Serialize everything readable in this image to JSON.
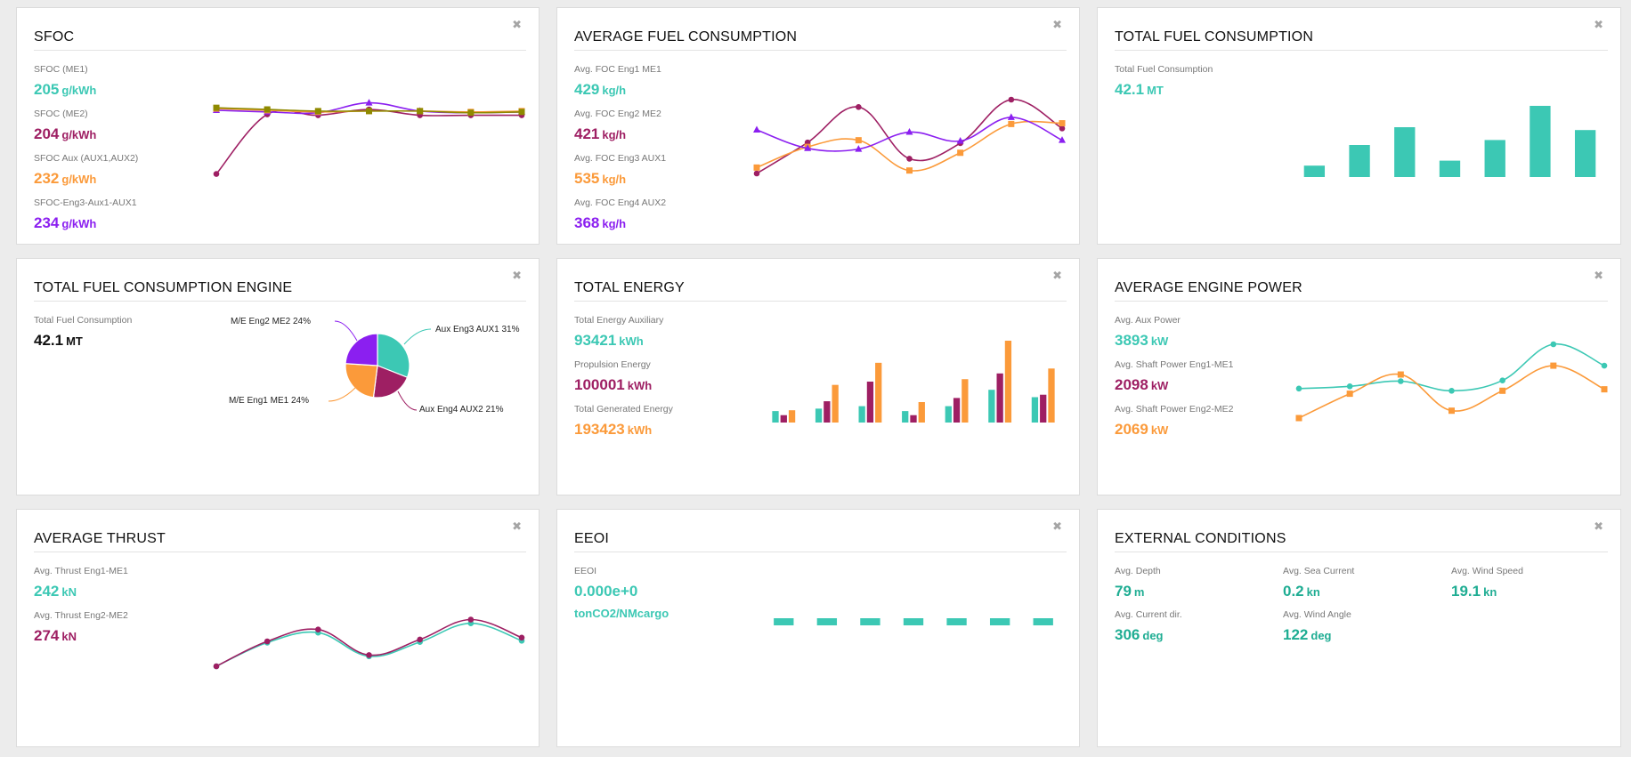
{
  "colors": {
    "teal": "#3cc8b4",
    "maroon": "#9e1f63",
    "orange": "#fb9a3a",
    "purple": "#8b1ff0",
    "olive": "#8f8a00",
    "green": "#1fad93"
  },
  "icons": {
    "close": "close-icon"
  },
  "close_glyph": "✖",
  "sfoc": {
    "title": "SFOC",
    "metrics": [
      {
        "label": "SFOC (ME1)",
        "value": "205",
        "unit": "g/kWh",
        "color": "teal"
      },
      {
        "label": "SFOC (ME2)",
        "value": "204",
        "unit": "g/kWh",
        "color": "maroon"
      },
      {
        "label": "SFOC Aux (AUX1,AUX2)",
        "value": "232",
        "unit": "g/kWh",
        "color": "orange"
      },
      {
        "label": "SFOC-Eng3-Aux1-AUX1",
        "value": "234",
        "unit": "g/kWh",
        "color": "purple"
      }
    ]
  },
  "avg_fuel": {
    "title": "AVERAGE FUEL CONSUMPTION",
    "metrics": [
      {
        "label": "Avg. FOC Eng1 ME1",
        "value": "429",
        "unit": "kg/h",
        "color": "teal"
      },
      {
        "label": "Avg. FOC Eng2 ME2",
        "value": "421",
        "unit": "kg/h",
        "color": "maroon"
      },
      {
        "label": "Avg. FOC Eng3 AUX1",
        "value": "535",
        "unit": "kg/h",
        "color": "orange"
      },
      {
        "label": "Avg. FOC Eng4 AUX2",
        "value": "368",
        "unit": "kg/h",
        "color": "purple"
      }
    ]
  },
  "total_fuel": {
    "title": "TOTAL FUEL CONSUMPTION",
    "metrics": [
      {
        "label": "Total Fuel Consumption",
        "value": "42.1",
        "unit": "MT",
        "color": "teal"
      }
    ]
  },
  "total_fuel_engine": {
    "title": "TOTAL FUEL CONSUMPTION ENGINE",
    "metrics": [
      {
        "label": "Total Fuel Consumption",
        "value": "42.1",
        "unit": "MT",
        "color": "black"
      }
    ]
  },
  "total_energy": {
    "title": "TOTAL ENERGY",
    "metrics": [
      {
        "label": "Total Energy Auxiliary",
        "value": "93421",
        "unit": "kWh",
        "color": "teal"
      },
      {
        "label": "Propulsion Energy",
        "value": "100001",
        "unit": "kWh",
        "color": "maroon"
      },
      {
        "label": "Total Generated Energy",
        "value": "193423",
        "unit": "kWh",
        "color": "orange"
      }
    ]
  },
  "avg_power": {
    "title": "AVERAGE ENGINE POWER",
    "metrics": [
      {
        "label": "Avg. Aux Power",
        "value": "3893",
        "unit": "kW",
        "color": "teal"
      },
      {
        "label": "Avg. Shaft Power Eng1-ME1",
        "value": "2098",
        "unit": "kW",
        "color": "maroon"
      },
      {
        "label": "Avg. Shaft Power Eng2-ME2",
        "value": "2069",
        "unit": "kW",
        "color": "orange"
      }
    ]
  },
  "avg_thrust": {
    "title": "AVERAGE THRUST",
    "metrics": [
      {
        "label": "Avg. Thrust Eng1-ME1",
        "value": "242",
        "unit": "kN",
        "color": "teal"
      },
      {
        "label": "Avg. Thrust Eng2-ME2",
        "value": "274",
        "unit": "kN",
        "color": "maroon"
      }
    ]
  },
  "eeoi": {
    "title": "EEOI",
    "metrics": [
      {
        "label": "EEOI",
        "value": "0.000e+0",
        "unit": "",
        "color": "teal"
      }
    ],
    "unit_line": "tonCO2/NMcargo"
  },
  "external": {
    "title": "EXTERNAL CONDITIONS",
    "items": [
      {
        "label": "Avg. Depth",
        "value": "79",
        "unit": "m"
      },
      {
        "label": "Avg. Sea Current",
        "value": "0.2",
        "unit": "kn"
      },
      {
        "label": "Avg. Wind Speed",
        "value": "19.1",
        "unit": "kn"
      },
      {
        "label": "Avg. Current dir.",
        "value": "306",
        "unit": "deg"
      },
      {
        "label": "Avg. Wind Angle",
        "value": "122",
        "unit": "deg"
      }
    ]
  },
  "chart_data": [
    {
      "id": "sfoc-chart",
      "type": "line",
      "ylim": [
        0,
        100
      ],
      "series": [
        {
          "color": "maroon",
          "marker": "circle",
          "smooth": true,
          "values": [
            8,
            80,
            79,
            86,
            79,
            79,
            79
          ]
        },
        {
          "color": "purple",
          "marker": "triangle",
          "smooth": true,
          "values": [
            85,
            83,
            82,
            94,
            84,
            82,
            83
          ]
        },
        {
          "color": "orange",
          "marker": "square",
          "smooth": true,
          "values": [
            87,
            85,
            83,
            84,
            84,
            83,
            84
          ]
        },
        {
          "color": "olive",
          "marker": "square",
          "smooth": true,
          "values": [
            88,
            86,
            84,
            84,
            84,
            82,
            83
          ]
        }
      ]
    },
    {
      "id": "avg-fuel-chart",
      "type": "line",
      "ylim": [
        0,
        100
      ],
      "series": [
        {
          "color": "maroon",
          "marker": "circle",
          "smooth": true,
          "values": [
            0,
            42,
            90,
            20,
            41,
            100,
            61
          ]
        },
        {
          "color": "orange",
          "marker": "square",
          "smooth": true,
          "values": [
            8,
            36,
            45,
            4,
            28,
            67,
            68
          ]
        },
        {
          "color": "purple",
          "marker": "triangle",
          "smooth": true,
          "values": [
            59,
            34,
            33,
            56,
            44,
            76,
            45
          ]
        }
      ]
    },
    {
      "id": "total-fuel-chart",
      "type": "bar",
      "ylim": [
        0,
        100
      ],
      "series": [
        {
          "color": "teal",
          "values": [
            16,
            45,
            70,
            23,
            52,
            100,
            66
          ]
        }
      ]
    },
    {
      "id": "pie-chart",
      "type": "pie",
      "slices": [
        {
          "label": "Aux Eng3 AUX1 31%",
          "value": 31,
          "color": "teal"
        },
        {
          "label": "Aux Eng4 AUX2 21%",
          "value": 21,
          "color": "maroon"
        },
        {
          "label": "M/E Eng1 ME1 24%",
          "value": 24,
          "color": "orange"
        },
        {
          "label": "M/E Eng2 ME2 24%",
          "value": 24,
          "color": "purple"
        }
      ]
    },
    {
      "id": "total-energy-chart",
      "type": "bar",
      "ylim": [
        0,
        100
      ],
      "series": [
        {
          "color": "teal",
          "values": [
            14,
            17,
            20,
            14,
            20,
            40,
            31
          ]
        },
        {
          "color": "maroon",
          "values": [
            9,
            26,
            50,
            9,
            30,
            60,
            34
          ]
        },
        {
          "color": "orange",
          "values": [
            15,
            46,
            73,
            25,
            53,
            100,
            66
          ]
        }
      ]
    },
    {
      "id": "avg-power-chart",
      "type": "line",
      "ylim": [
        0,
        100
      ],
      "series": [
        {
          "color": "teal",
          "marker": "circle",
          "smooth": true,
          "values": [
            40,
            43,
            50,
            37,
            51,
            100,
            71
          ]
        },
        {
          "color": "orange",
          "marker": "square",
          "smooth": true,
          "values": [
            0,
            33,
            59,
            10,
            37,
            71,
            39
          ]
        }
      ]
    },
    {
      "id": "avg-thrust-chart",
      "type": "line",
      "ylim": [
        0,
        100
      ],
      "series": [
        {
          "color": "teal",
          "marker": "circle",
          "smooth": true,
          "values": [
            0,
            38,
            54,
            16,
            39,
            69,
            41
          ]
        },
        {
          "color": "maroon",
          "marker": "circle",
          "smooth": true,
          "values": [
            0,
            40,
            59,
            18,
            43,
            75,
            46
          ]
        }
      ]
    },
    {
      "id": "eeoi-chart",
      "type": "bar",
      "ylim": [
        0,
        100
      ],
      "series": [
        {
          "color": "teal",
          "values": [
            0,
            0,
            0,
            0,
            0,
            0,
            0
          ]
        }
      ]
    }
  ]
}
